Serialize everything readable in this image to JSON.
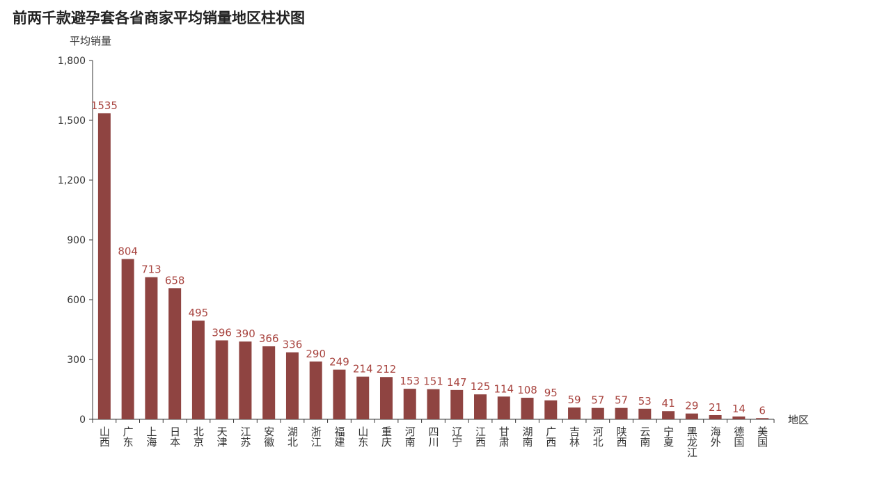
{
  "chart_data": {
    "type": "bar",
    "title": "前两千款避孕套各省商家平均销量地区柱状图",
    "xlabel": "地区",
    "ylabel": "平均销量",
    "ylim": [
      0,
      1800
    ],
    "yticks": [
      0,
      300,
      600,
      900,
      1200,
      1500,
      1800
    ],
    "ytick_labels": [
      "0",
      "300",
      "600",
      "900",
      "1,200",
      "1,500",
      "1,800"
    ],
    "categories": [
      "山西",
      "广东",
      "上海",
      "日本",
      "北京",
      "天津",
      "江苏",
      "安徽",
      "湖北",
      "浙江",
      "福建",
      "山东",
      "重庆",
      "河南",
      "四川",
      "辽宁",
      "江西",
      "甘肃",
      "湖南",
      "广西",
      "吉林",
      "河北",
      "陕西",
      "云南",
      "宁夏",
      "黑龙江",
      "海外",
      "德国",
      "美国"
    ],
    "values": [
      1535,
      804,
      713,
      658,
      495,
      396,
      390,
      366,
      336,
      290,
      249,
      214,
      212,
      153,
      151,
      147,
      125,
      114,
      108,
      95,
      59,
      57,
      57,
      53,
      41,
      29,
      21,
      14,
      6
    ],
    "grid": false,
    "legend": "none",
    "colors": {
      "bar": "#8f4441",
      "label": "#a8443f",
      "axis": "#333333"
    }
  }
}
